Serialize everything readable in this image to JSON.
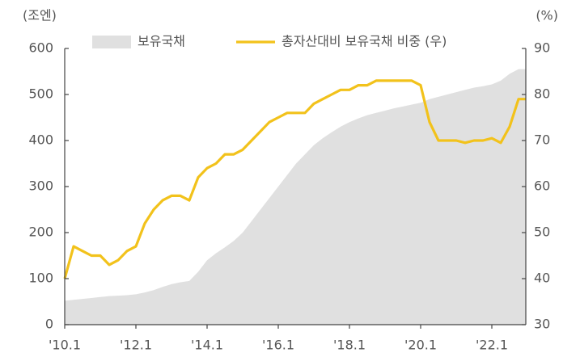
{
  "chart_data": {
    "type": "area-line",
    "y_label": "(조엔)",
    "y2_label": "(%)",
    "categories": [
      "'10.1",
      null,
      null,
      null,
      null,
      null,
      null,
      null,
      "'12.1",
      null,
      null,
      null,
      null,
      null,
      null,
      null,
      "'14.1",
      null,
      null,
      null,
      null,
      null,
      null,
      null,
      "'16.1",
      null,
      null,
      null,
      null,
      null,
      null,
      null,
      "'18.1",
      null,
      null,
      null,
      null,
      null,
      null,
      null,
      "'20.1",
      null,
      null,
      null,
      null,
      null,
      null,
      null,
      "'22.1",
      null,
      null,
      null
    ],
    "series": [
      {
        "name": "보유국채",
        "color": "#e0e0e0",
        "axis": "y",
        "values": [
          52,
          54,
          56,
          58,
          60,
          62,
          63,
          64,
          66,
          70,
          75,
          82,
          88,
          92,
          95,
          115,
          140,
          155,
          168,
          182,
          200,
          225,
          250,
          275,
          300,
          325,
          350,
          370,
          390,
          405,
          418,
          430,
          440,
          448,
          455,
          460,
          465,
          470,
          474,
          478,
          482,
          490,
          495,
          500,
          505,
          510,
          515,
          518,
          522,
          530,
          545,
          555
        ]
      },
      {
        "name": "총자산대비 보유국채 비중 (우)",
        "color": "#f2c21b",
        "axis": "y2",
        "values": [
          40,
          47,
          46,
          45,
          45,
          43,
          44,
          46,
          47,
          52,
          55,
          57,
          58,
          58,
          57,
          62,
          64,
          65,
          67,
          67,
          68,
          70,
          72,
          74,
          75,
          76,
          76,
          76,
          78,
          79,
          80,
          81,
          81,
          82,
          82,
          83,
          83,
          83,
          83,
          83,
          82,
          74,
          70,
          70,
          70,
          69.5,
          70,
          70,
          70.5,
          69.5,
          73,
          79
        ]
      }
    ],
    "ylim": [
      0,
      600
    ],
    "yticks": [
      0,
      100,
      200,
      300,
      400,
      500,
      600
    ],
    "y2lim": [
      30,
      90
    ],
    "y2ticks": [
      30,
      40,
      50,
      60,
      70,
      80,
      90
    ]
  }
}
